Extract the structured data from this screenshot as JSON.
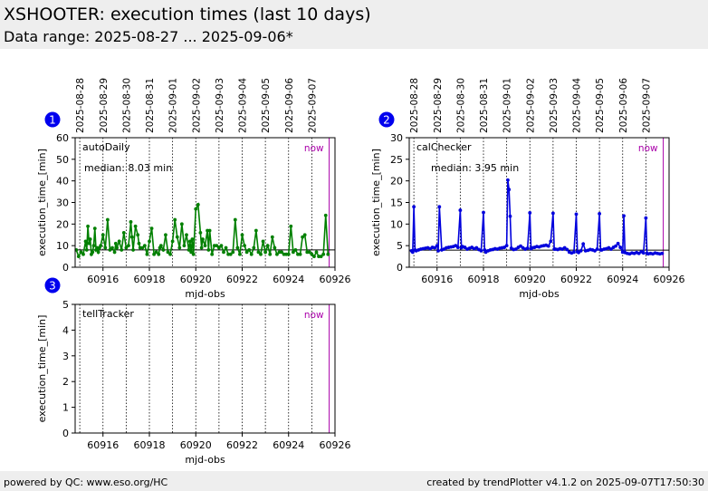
{
  "header": {
    "title": "XSHOOTER: execution times (last 10 days)",
    "subtitle": "Data range: 2025-08-27 ... 2025-09-06*"
  },
  "footer": {
    "left": "powered by QC: www.eso.org/HC",
    "right": "created by trendPlotter v4.1.2 on 2025-09-07T17:50:30"
  },
  "colors": {
    "autoDaily": "#008000",
    "calChecker": "#0000dd",
    "now_line": "#aa00aa",
    "badge": "#0000ee"
  },
  "chart_data": [
    {
      "type": "line",
      "badge": "1",
      "name": "autoDaily",
      "median_label": "median: 8.03 min",
      "median": 8.03,
      "now_label": "now",
      "now_x": 60925.75,
      "xlabel": "mjd-obs",
      "ylabel": "execution_time_[min]",
      "xlim": [
        60914.8,
        60926.0
      ],
      "ylim": [
        0,
        60
      ],
      "xticks": [
        60916,
        60918,
        60920,
        60922,
        60924,
        60926
      ],
      "yticks": [
        0,
        10,
        20,
        30,
        40,
        50,
        60
      ],
      "date_lines": [
        60915.0,
        60916.0,
        60917.0,
        60918.0,
        60919.0,
        60920.0,
        60921.0,
        60922.0,
        60923.0,
        60924.0,
        60925.0
      ],
      "date_labels": [
        "2025-08-28",
        "2025-08-29",
        "2025-08-30",
        "2025-08-31",
        "2025-09-01",
        "2025-09-02",
        "2025-09-03",
        "2025-09-04",
        "2025-09-05",
        "2025-09-06",
        "2025-09-07"
      ],
      "x": [
        60914.85,
        60914.95,
        60915.05,
        60915.15,
        60915.25,
        60915.3,
        60915.35,
        60915.4,
        60915.45,
        60915.5,
        60915.55,
        60915.6,
        60915.65,
        60915.7,
        60915.75,
        60915.8,
        60915.85,
        60915.9,
        60916.0,
        60916.1,
        60916.2,
        60916.3,
        60916.4,
        60916.5,
        60916.55,
        60916.6,
        60916.7,
        60916.8,
        60916.9,
        60917.0,
        60917.1,
        60917.2,
        60917.25,
        60917.3,
        60917.4,
        60917.5,
        60917.55,
        60917.6,
        60917.7,
        60917.8,
        60917.9,
        60918.0,
        60918.1,
        60918.2,
        60918.3,
        60918.4,
        60918.45,
        60918.5,
        60918.6,
        60918.7,
        60918.8,
        60918.9,
        60919.0,
        60919.1,
        60919.2,
        60919.3,
        60919.4,
        60919.5,
        60919.6,
        60919.7,
        60919.75,
        60919.8,
        60919.85,
        60919.9,
        60920.0,
        60920.1,
        60920.2,
        60920.25,
        60920.3,
        60920.4,
        60920.5,
        60920.55,
        60920.6,
        60920.7,
        60920.8,
        60920.9,
        60921.0,
        60921.1,
        60921.2,
        60921.3,
        60921.4,
        60921.5,
        60921.6,
        60921.7,
        60921.8,
        60921.9,
        60922.0,
        60922.1,
        60922.2,
        60922.3,
        60922.4,
        60922.5,
        60922.6,
        60922.7,
        60922.8,
        60922.9,
        60923.0,
        60923.1,
        60923.2,
        60923.3,
        60923.4,
        60923.5,
        60923.6,
        60923.7,
        60923.8,
        60923.9,
        60924.0,
        60924.1,
        60924.2,
        60924.3,
        60924.4,
        60924.5,
        60924.6,
        60924.7,
        60924.8,
        60924.9,
        60925.0,
        60925.1,
        60925.2,
        60925.3,
        60925.4,
        60925.5,
        60925.6,
        60925.7
      ],
      "y": [
        8,
        5,
        7,
        6,
        12,
        8,
        19,
        11,
        13,
        6,
        7,
        10,
        18,
        8,
        9,
        7,
        9,
        10,
        15,
        9,
        22,
        8,
        9,
        7,
        11,
        9,
        12,
        8,
        16,
        9,
        10,
        21,
        14,
        8,
        19,
        15,
        11,
        9,
        9,
        10,
        6,
        12,
        18,
        6,
        7,
        6,
        9,
        10,
        8,
        15,
        7,
        6,
        12,
        22,
        14,
        9,
        20,
        10,
        15,
        8,
        12,
        7,
        13,
        6,
        27,
        29,
        16,
        9,
        13,
        10,
        17,
        8,
        17,
        6,
        10,
        10,
        9,
        10,
        7,
        9,
        6,
        6,
        7,
        22,
        9,
        6,
        15,
        10,
        7,
        8,
        6,
        9,
        17,
        7,
        6,
        12,
        7,
        10,
        6,
        14,
        9,
        6,
        7,
        7,
        6,
        6,
        6,
        19,
        7,
        8,
        6,
        6,
        14,
        15,
        7,
        7,
        6,
        5,
        7,
        5,
        5,
        6,
        24,
        6
      ]
    },
    {
      "type": "line",
      "badge": "2",
      "name": "calChecker",
      "median_label": "median: 3.95 min",
      "median": 3.95,
      "now_label": "now",
      "now_x": 60925.75,
      "xlabel": "mjd-obs",
      "ylabel": "execution_time_[min]",
      "xlim": [
        60914.8,
        60926.0
      ],
      "ylim": [
        0,
        30
      ],
      "xticks": [
        60916,
        60918,
        60920,
        60922,
        60924,
        60926
      ],
      "yticks": [
        0,
        5,
        10,
        15,
        20,
        25,
        30
      ],
      "date_lines": [
        60915.0,
        60916.0,
        60917.0,
        60918.0,
        60919.0,
        60920.0,
        60921.0,
        60922.0,
        60923.0,
        60924.0,
        60925.0
      ],
      "date_labels": [
        "2025-08-28",
        "2025-08-29",
        "2025-08-30",
        "2025-08-31",
        "2025-09-01",
        "2025-09-02",
        "2025-09-03",
        "2025-09-04",
        "2025-09-05",
        "2025-09-06",
        "2025-09-07"
      ],
      "x": [
        60914.9,
        60914.95,
        60915.0,
        60915.05,
        60915.1,
        60915.2,
        60915.3,
        60915.4,
        60915.5,
        60915.6,
        60915.7,
        60915.8,
        60915.9,
        60916.0,
        60916.05,
        60916.1,
        60916.2,
        60916.3,
        60916.4,
        60916.5,
        60916.6,
        60916.7,
        60916.8,
        60916.9,
        60917.0,
        60917.05,
        60917.1,
        60917.2,
        60917.3,
        60917.4,
        60917.5,
        60917.6,
        60917.7,
        60917.8,
        60917.9,
        60918.0,
        60918.05,
        60918.1,
        60918.2,
        60918.3,
        60918.4,
        60918.5,
        60918.6,
        60918.7,
        60918.8,
        60918.9,
        60919.0,
        60919.05,
        60919.1,
        60919.15,
        60919.2,
        60919.3,
        60919.4,
        60919.5,
        60919.6,
        60919.7,
        60919.8,
        60919.9,
        60920.0,
        60920.05,
        60920.1,
        60920.2,
        60920.3,
        60920.4,
        60920.5,
        60920.6,
        60920.7,
        60920.8,
        60920.9,
        60921.0,
        60921.05,
        60921.1,
        60921.2,
        60921.3,
        60921.4,
        60921.5,
        60921.6,
        60921.7,
        60921.8,
        60921.9,
        60922.0,
        60922.05,
        60922.1,
        60922.2,
        60922.3,
        60922.4,
        60922.5,
        60922.6,
        60922.7,
        60922.8,
        60922.9,
        60923.0,
        60923.05,
        60923.1,
        60923.2,
        60923.3,
        60923.4,
        60923.5,
        60923.6,
        60923.7,
        60923.8,
        60923.9,
        60924.0,
        60924.05,
        60924.1,
        60924.2,
        60924.3,
        60924.4,
        60924.5,
        60924.6,
        60924.7,
        60924.8,
        60924.9,
        60925.0,
        60925.05,
        60925.1,
        60925.2,
        60925.3,
        60925.4,
        60925.5,
        60925.6,
        60925.7
      ],
      "y": [
        3.8,
        3.5,
        14,
        4,
        3.8,
        4,
        4.2,
        4.3,
        4.4,
        4.5,
        4.3,
        4.6,
        4.5,
        5,
        3.8,
        14,
        4,
        4.2,
        4.5,
        4.6,
        4.7,
        4.8,
        5,
        4.6,
        13.2,
        4.5,
        4.8,
        4.6,
        4.2,
        4.4,
        4.6,
        4.3,
        4.5,
        4.1,
        3.8,
        12.7,
        4,
        3.5,
        3.8,
        4,
        4.1,
        4.3,
        4.2,
        4.4,
        4.5,
        4.6,
        5,
        20.2,
        18,
        11.8,
        4.4,
        4.1,
        4.2,
        4.6,
        4.9,
        4.5,
        4.2,
        4.4,
        12.6,
        4.3,
        4.5,
        4.6,
        4.8,
        4.7,
        4.9,
        5,
        5.1,
        4.9,
        6,
        12.5,
        4.2,
        4.2,
        4.1,
        4.3,
        4.2,
        4.5,
        4.1,
        3.5,
        3.3,
        3.5,
        12.3,
        3.6,
        3.4,
        3.8,
        5.4,
        3.8,
        3.9,
        4.1,
        4,
        3.8,
        4.2,
        12.4,
        4,
        4,
        4.2,
        4.3,
        4.5,
        4.2,
        4.6,
        4.9,
        5.5,
        4.6,
        3.5,
        11.9,
        3.4,
        3.2,
        3.1,
        3.3,
        3.2,
        3.4,
        3.2,
        3.6,
        3.3,
        11.4,
        3.2,
        3.1,
        3.2,
        3.1,
        3.3,
        3.2,
        3.1,
        3.2
      ]
    },
    {
      "type": "line",
      "badge": "3",
      "name": "tellTracker",
      "now_label": "now",
      "now_x": 60925.75,
      "xlabel": "mjd-obs",
      "ylabel": "execution_time_[min]",
      "xlim": [
        60914.8,
        60926.0
      ],
      "ylim": [
        0,
        5
      ],
      "xticks": [
        60916,
        60918,
        60920,
        60922,
        60924,
        60926
      ],
      "yticks": [
        0,
        1,
        2,
        3,
        4,
        5
      ],
      "date_lines": [
        60915.0,
        60916.0,
        60917.0,
        60918.0,
        60919.0,
        60920.0,
        60921.0,
        60922.0,
        60923.0,
        60924.0,
        60925.0
      ],
      "x": [],
      "y": []
    }
  ]
}
